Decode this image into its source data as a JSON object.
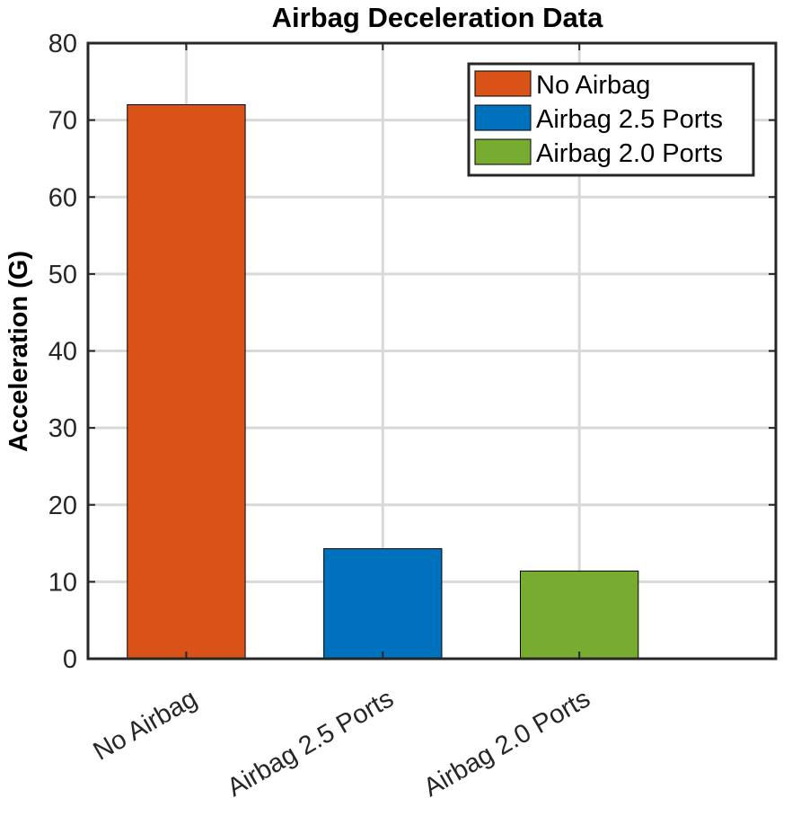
{
  "chart_data": {
    "type": "bar",
    "title": "Airbag Deceleration Data",
    "xlabel": "",
    "ylabel": "Acceleration (G)",
    "categories": [
      "No Airbag",
      "Airbag 2.5 Ports",
      "Airbag 2.0 Ports"
    ],
    "values": [
      72,
      14.3,
      11.4
    ],
    "colors": [
      "#D95319",
      "#0072BD",
      "#77AC30"
    ],
    "ylim": [
      0,
      80
    ],
    "yticks": [
      0,
      10,
      20,
      30,
      40,
      50,
      60,
      70,
      80
    ],
    "grid": true,
    "legend": {
      "position": "top-right",
      "entries": [
        "No Airbag",
        "Airbag 2.5 Ports",
        "Airbag 2.0 Ports"
      ]
    }
  }
}
